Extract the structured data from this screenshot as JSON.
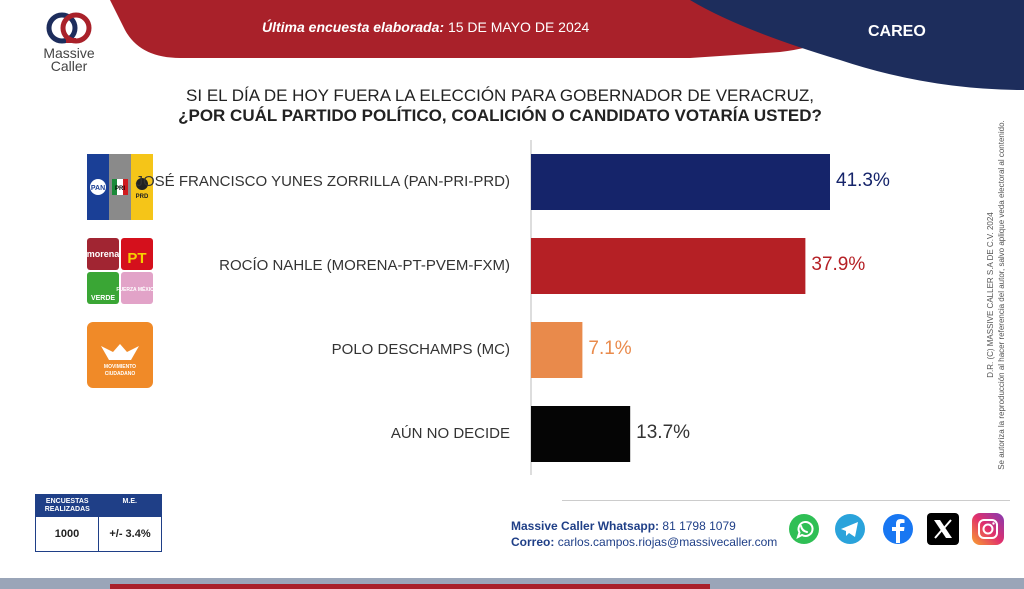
{
  "header": {
    "survey_label": "Última encuesta elaborada:",
    "survey_date": "15 DE MAYO DE 2024",
    "section": "CAREO",
    "colors": {
      "red": "#a9212a",
      "navy": "#1d2d5c"
    }
  },
  "brand": {
    "name_line1": "Massive",
    "name_line2": "Caller"
  },
  "question": {
    "line1": "SI EL DÍA DE HOY FUERA LA ELECCIÓN PARA GOBERNADOR DE VERACRUZ,",
    "line2": "¿POR CUÁL PARTIDO POLÍTICO, COALICIÓN O CANDIDATO VOTARÍA USTED?"
  },
  "chart_data": {
    "type": "bar",
    "orientation": "horizontal",
    "categories": [
      "JOSÉ FRANCISCO YUNES ZORRILLA (PAN-PRI-PRD)",
      "ROCÍO NAHLE (MORENA-PT-PVEM-FXM)",
      "POLO DESCHAMPS (MC)",
      "AÚN NO DECIDE"
    ],
    "values": [
      41.3,
      37.9,
      7.1,
      13.7
    ],
    "value_labels": [
      "41.3%",
      "37.9%",
      "7.1%",
      "13.7%"
    ],
    "colors": [
      "#15246a",
      "#b52025",
      "#e98a4b",
      "#050505"
    ],
    "label_colors": [
      "#15246a",
      "#b52025",
      "#e98a4b",
      "#333333"
    ],
    "xlim": [
      0,
      45
    ],
    "grid": false,
    "legend": "none"
  },
  "party_logos": {
    "coalition1": [
      "PAN",
      "PRI",
      "PRD"
    ],
    "coalition2": [
      "morena",
      "PT",
      "VERDE",
      "FUERZA MÉXICO"
    ],
    "mc": [
      "MOVIMIENTO",
      "CIUDADANO"
    ]
  },
  "side_note": {
    "line1": "D.R. (C) MASSIVE CALLER S.A DE C.V. 2024",
    "line2": "Se autoriza la reproducción al hacer referencia del autor, salvo aplique veda electoral al contenido."
  },
  "stats": {
    "col1_header": "ENCUESTAS REALIZADAS",
    "col2_header": "M.E.",
    "col1_value": "1000",
    "col2_value": "+/- 3.4%"
  },
  "contact": {
    "whatsapp_label": "Massive Caller Whatsapp:",
    "whatsapp_number": "81 1798 1079",
    "email_label": "Correo:",
    "email": "carlos.campos.riojas@massivecaller.com"
  },
  "social_icons": [
    "whatsapp-icon",
    "telegram-icon",
    "facebook-icon",
    "x-icon",
    "instagram-icon"
  ]
}
